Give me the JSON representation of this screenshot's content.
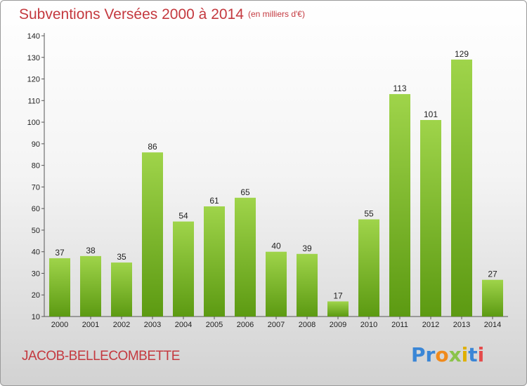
{
  "header": {
    "title": "Subventions Versées 2000 à 2014",
    "subtitle": "(en milliers d'€)"
  },
  "footer": {
    "commune": "JACOB-BELLECOMBETTE",
    "logo_letters": [
      {
        "char": "P",
        "color": "#3a86d6"
      },
      {
        "char": "r",
        "color": "#3a86d6"
      },
      {
        "char": "o",
        "color": "#f08a1c"
      },
      {
        "char": "x",
        "color": "#8bc34a"
      },
      {
        "char": "i",
        "color": "#e0b000"
      },
      {
        "char": "t",
        "color": "#3a86d6"
      },
      {
        "char": "i",
        "color": "#e54b4b"
      }
    ]
  },
  "chart_data": {
    "type": "bar",
    "title": "Subventions Versées 2000 à 2014",
    "subtitle": "(en milliers d'€)",
    "xlabel": "",
    "ylabel": "",
    "categories": [
      "2000",
      "2001",
      "2002",
      "2003",
      "2004",
      "2005",
      "2006",
      "2007",
      "2008",
      "2009",
      "2010",
      "2011",
      "2012",
      "2013",
      "2014"
    ],
    "values": [
      37,
      38,
      35,
      86,
      54,
      61,
      65,
      40,
      39,
      17,
      55,
      113,
      101,
      129,
      27
    ],
    "ylim": [
      10,
      140
    ],
    "yticks": [
      10,
      20,
      30,
      40,
      50,
      60,
      70,
      80,
      90,
      100,
      110,
      120,
      130,
      140
    ],
    "grid": false,
    "legend": "none",
    "colors": {
      "bar_top": "#9fd44a",
      "bar_bottom": "#5c9a12",
      "title": "#c4393f"
    }
  }
}
